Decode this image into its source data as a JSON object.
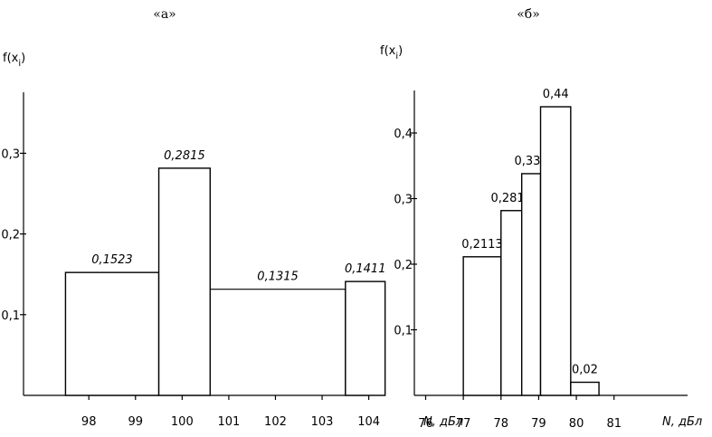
{
  "chart_data": [
    {
      "panel_label": "«а»",
      "type": "bar",
      "ylabel": "f(xi)",
      "xlabel": "N, дБл",
      "ylim": [
        0,
        0.3
      ],
      "xlim": [
        96.6,
        106.8
      ],
      "y_ticks": [
        "0,1",
        "0,2",
        "0,3"
      ],
      "x_ticks": [
        "98",
        "99",
        "100",
        "101",
        "102",
        "103",
        "104"
      ],
      "x_tick_values": [
        98,
        99,
        100,
        101,
        102,
        103,
        104
      ],
      "bars": [
        {
          "from": 97.5,
          "to": 99.5,
          "value": 0.1523,
          "label": "0,1523",
          "rect": true
        },
        {
          "from": 99.5,
          "to": 100.6,
          "value": 0.2815,
          "label": "0,2815",
          "rect": true
        },
        {
          "from": 100.6,
          "to": 103.5,
          "value": 0.1315,
          "label": "0,1315",
          "rect": false
        },
        {
          "from": 103.5,
          "to": 104.35,
          "value": 0.1411,
          "label": "0,1411",
          "rect": true
        }
      ]
    },
    {
      "panel_label": "«б»",
      "type": "bar",
      "ylabel": "f(xi)",
      "xlabel": "N, дБл",
      "ylim": [
        0,
        0.5
      ],
      "xlim": [
        75.7,
        83.6
      ],
      "y_ticks": [
        "0,1",
        "0,2",
        "0,3",
        "0,4"
      ],
      "x_ticks": [
        "76",
        "77",
        "78",
        "79",
        "80",
        "81"
      ],
      "x_tick_values": [
        76,
        77,
        78,
        79,
        80,
        81
      ],
      "bars": [
        {
          "from": 77,
          "to": 78,
          "value": 0.2113,
          "label": "0,2113",
          "rect": true
        },
        {
          "from": 78,
          "to": 78.55,
          "value": 0.2817,
          "label": "0,2817",
          "rect": true
        },
        {
          "from": 78.55,
          "to": 79.05,
          "value": 0.338,
          "label": "0,338",
          "rect": true
        },
        {
          "from": 79.05,
          "to": 79.85,
          "value": 0.44,
          "label": "0,44",
          "rect": true
        },
        {
          "from": 79.85,
          "to": 80.6,
          "value": 0.02,
          "label": "0,02",
          "rect": true
        }
      ]
    }
  ]
}
